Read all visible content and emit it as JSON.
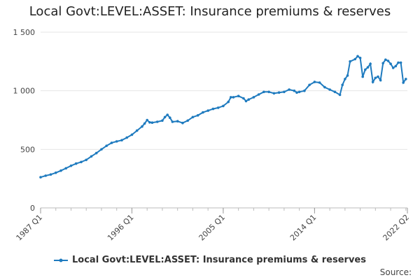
{
  "chart_data": {
    "type": "line",
    "title": "Local Govt:LEVEL:ASSET: Insurance premiums & reserves",
    "xlabel": "",
    "ylabel": "",
    "ylim": [
      0,
      1500
    ],
    "y_ticks": [
      0,
      500,
      1000,
      1500
    ],
    "y_tick_labels": [
      "0",
      "500",
      "1 000",
      "1 500"
    ],
    "x_tick_labels": [
      "1987 Q1",
      "1996 Q1",
      "2005 Q1",
      "2014 Q1",
      "2022 Q2"
    ],
    "grid": true,
    "legend_position": "bottom",
    "color": "#1f7bbf",
    "series": [
      {
        "name": "Local Govt:LEVEL:ASSET: Insurance premiums & reserves",
        "points": [
          [
            1987.0,
            262
          ],
          [
            1987.5,
            275
          ],
          [
            1988.0,
            285
          ],
          [
            1988.5,
            300
          ],
          [
            1989.0,
            318
          ],
          [
            1989.5,
            338
          ],
          [
            1990.0,
            360
          ],
          [
            1990.5,
            378
          ],
          [
            1991.0,
            392
          ],
          [
            1991.5,
            410
          ],
          [
            1992.0,
            440
          ],
          [
            1992.5,
            468
          ],
          [
            1993.0,
            500
          ],
          [
            1993.5,
            530
          ],
          [
            1994.0,
            555
          ],
          [
            1994.5,
            568
          ],
          [
            1995.0,
            578
          ],
          [
            1995.5,
            600
          ],
          [
            1996.0,
            625
          ],
          [
            1996.5,
            660
          ],
          [
            1997.0,
            695
          ],
          [
            1997.25,
            720
          ],
          [
            1997.5,
            750
          ],
          [
            1997.75,
            730
          ],
          [
            1998.0,
            728
          ],
          [
            1998.5,
            735
          ],
          [
            1999.0,
            745
          ],
          [
            1999.25,
            775
          ],
          [
            1999.5,
            795
          ],
          [
            1999.75,
            770
          ],
          [
            2000.0,
            735
          ],
          [
            2000.5,
            740
          ],
          [
            2001.0,
            725
          ],
          [
            2001.5,
            745
          ],
          [
            2002.0,
            775
          ],
          [
            2002.5,
            790
          ],
          [
            2003.0,
            815
          ],
          [
            2003.5,
            830
          ],
          [
            2004.0,
            845
          ],
          [
            2004.5,
            855
          ],
          [
            2005.0,
            870
          ],
          [
            2005.5,
            905
          ],
          [
            2005.75,
            945
          ],
          [
            2006.0,
            945
          ],
          [
            2006.5,
            955
          ],
          [
            2007.0,
            935
          ],
          [
            2007.25,
            912
          ],
          [
            2007.5,
            925
          ],
          [
            2008.0,
            945
          ],
          [
            2008.5,
            968
          ],
          [
            2009.0,
            990
          ],
          [
            2009.5,
            990
          ],
          [
            2010.0,
            978
          ],
          [
            2010.5,
            985
          ],
          [
            2011.0,
            990
          ],
          [
            2011.5,
            1010
          ],
          [
            2012.0,
            1000
          ],
          [
            2012.25,
            985
          ],
          [
            2012.5,
            990
          ],
          [
            2013.0,
            1000
          ],
          [
            2013.5,
            1050
          ],
          [
            2014.0,
            1075
          ],
          [
            2014.5,
            1070
          ],
          [
            2015.0,
            1030
          ],
          [
            2015.5,
            1010
          ],
          [
            2016.0,
            990
          ],
          [
            2016.5,
            965
          ],
          [
            2016.75,
            1050
          ],
          [
            2017.0,
            1100
          ],
          [
            2017.25,
            1130
          ],
          [
            2017.5,
            1250
          ],
          [
            2018.0,
            1270
          ],
          [
            2018.25,
            1295
          ],
          [
            2018.5,
            1280
          ],
          [
            2018.75,
            1120
          ],
          [
            2019.0,
            1180
          ],
          [
            2019.25,
            1200
          ],
          [
            2019.5,
            1230
          ],
          [
            2019.75,
            1075
          ],
          [
            2020.0,
            1110
          ],
          [
            2020.25,
            1120
          ],
          [
            2020.5,
            1090
          ],
          [
            2020.75,
            1235
          ],
          [
            2021.0,
            1265
          ],
          [
            2021.25,
            1255
          ],
          [
            2021.5,
            1230
          ],
          [
            2021.75,
            1195
          ],
          [
            2022.0,
            1210
          ],
          [
            2022.25,
            1240
          ],
          [
            2022.5,
            1240
          ],
          [
            2022.75,
            1070
          ],
          [
            2023.0,
            1100
          ]
        ]
      }
    ],
    "source_label": "Source:"
  }
}
